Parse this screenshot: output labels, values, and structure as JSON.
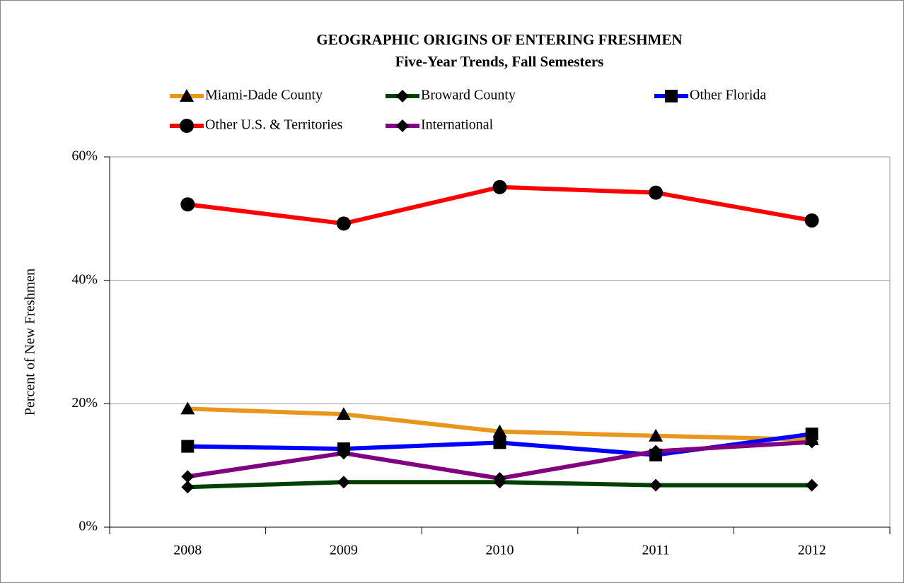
{
  "chart_data": {
    "type": "line",
    "title": "GEOGRAPHIC ORIGINS OF ENTERING FRESHMEN",
    "subtitle": "Five-Year Trends, Fall Semesters",
    "y_label": "Percent of New Freshmen",
    "categories": [
      "2008",
      "2009",
      "2010",
      "2011",
      "2012"
    ],
    "series": [
      {
        "name": "Miami-Dade County",
        "color": "#e8961e",
        "marker": "triangle",
        "values": [
          19.2,
          18.3,
          15.5,
          14.8,
          14.2
        ]
      },
      {
        "name": "Broward County",
        "color": "#004000",
        "marker": "diamond",
        "values": [
          6.5,
          7.3,
          7.3,
          6.8,
          6.8
        ]
      },
      {
        "name": "Other Florida",
        "color": "#0000ff",
        "marker": "square",
        "values": [
          13.1,
          12.7,
          13.7,
          11.7,
          15.1
        ]
      },
      {
        "name": "Other U.S. & Territories",
        "color": "#ff0000",
        "marker": "circle",
        "values": [
          52.3,
          49.2,
          55.1,
          54.2,
          49.7
        ]
      },
      {
        "name": "International",
        "color": "#800080",
        "marker": "diamond",
        "values": [
          8.2,
          12.0,
          7.9,
          12.3,
          13.8
        ]
      }
    ],
    "ylim": [
      0,
      60
    ],
    "yticks": [
      {
        "value": 0,
        "label": "0%"
      },
      {
        "value": 20,
        "label": "20%"
      },
      {
        "value": 40,
        "label": "40%"
      },
      {
        "value": 60,
        "label": "60%"
      }
    ],
    "grid": true,
    "legend": "top"
  }
}
